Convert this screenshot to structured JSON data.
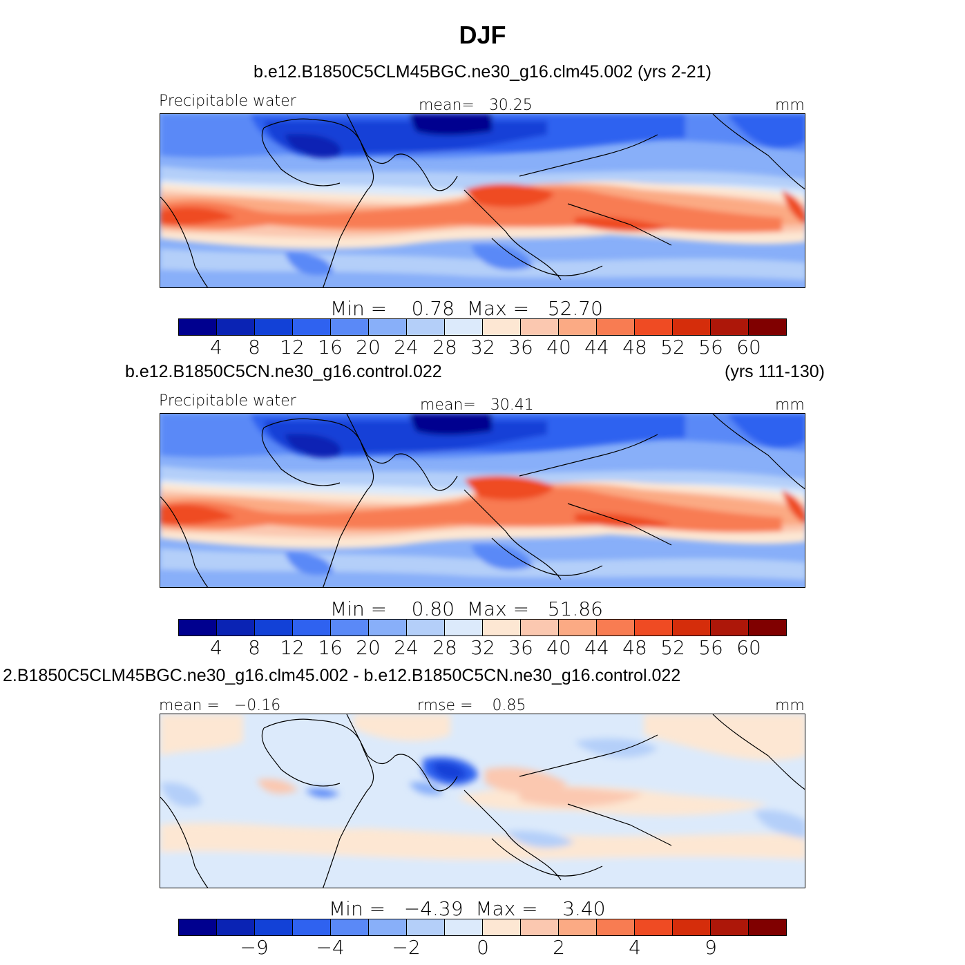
{
  "title": "DJF",
  "colors": [
    "#00008f",
    "#0a23b4",
    "#1241d7",
    "#2f62f0",
    "#5a89f7",
    "#88aff9",
    "#b4cff9",
    "#dceafb",
    "#fde7d3",
    "#fbc8b0",
    "#fbaa84",
    "#f87c52",
    "#ef4b23",
    "#d52d0b",
    "#ad1709",
    "#800000"
  ],
  "panels": [
    {
      "case": "b.e12.B1850C5CLM45BGC.ne30_g16.clm45.002 (yrs 2-21)",
      "case_years": "",
      "variable": "Precipitable  water",
      "mean_label": "mean=",
      "mean_value": "30.25",
      "units": "mm",
      "min_label": "Min  =",
      "min_value": "0.78",
      "max_label": "Max  =",
      "max_value": "52.70",
      "ticks": [
        "4",
        "8",
        "12",
        "16",
        "20",
        "24",
        "28",
        "32",
        "36",
        "40",
        "44",
        "48",
        "52",
        "56",
        "60"
      ]
    },
    {
      "case": "b.e12.B1850C5CN.ne30_g16.control.022",
      "case_years": "(yrs 111-130)",
      "variable": "Precipitable  water",
      "mean_label": "mean=",
      "mean_value": "30.41",
      "units": "mm",
      "min_label": "Min  =",
      "min_value": "0.80",
      "max_label": "Max  =",
      "max_value": "51.86",
      "ticks": [
        "4",
        "8",
        "12",
        "16",
        "20",
        "24",
        "28",
        "32",
        "36",
        "40",
        "44",
        "48",
        "52",
        "56",
        "60"
      ]
    },
    {
      "case": "2.B1850C5CLM45BGC.ne30_g16.clm45.002 - b.e12.B1850C5CN.ne30_g16.control.022",
      "mean_label": "mean  =",
      "mean_value": "−0.16",
      "rmse_label": "rmse  =",
      "rmse_value": "0.85",
      "units": "mm",
      "min_label": "Min  =",
      "min_value": "−4.39",
      "max_label": "Max  =",
      "max_value": "3.40",
      "ticks": [
        "−9",
        "−4",
        "−2",
        "0",
        "2",
        "4",
        "9"
      ]
    }
  ],
  "chart_data": [
    {
      "type": "heatmap",
      "title": "DJF",
      "subtitle": "b.e12.B1850C5CLM45BGC.ne30_g16.clm45.002 (yrs 2-21)",
      "variable": "Precipitable  water",
      "units": "mm",
      "mean": 30.25,
      "min": 0.78,
      "max": 52.7,
      "contour_levels": [
        4,
        8,
        12,
        16,
        20,
        24,
        28,
        32,
        36,
        40,
        44,
        48,
        52,
        56,
        60
      ],
      "map": "tropical band, Atlantic-centred, continents outlined",
      "features": [
        "Warm pool max over Maritime Continent / W Pacific (~48-52)",
        "Dry Sahara / Arabia (<8)",
        "ITCZ/SPCZ band 40-48"
      ]
    },
    {
      "type": "heatmap",
      "subtitle": "b.e12.B1850C5CN.ne30_g16.control.022 (yrs 111-130)",
      "variable": "Precipitable  water",
      "units": "mm",
      "mean": 30.41,
      "min": 0.8,
      "max": 51.86,
      "contour_levels": [
        4,
        8,
        12,
        16,
        20,
        24,
        28,
        32,
        36,
        40,
        44,
        48,
        52,
        56,
        60
      ]
    },
    {
      "type": "heatmap",
      "subtitle": "2.B1850C5CLM45BGC.ne30_g16.clm45.002 - b.e12.B1850C5CN.ne30_g16.control.022",
      "units": "mm",
      "mean": -0.16,
      "rmse": 0.85,
      "min": -4.39,
      "max": 3.4,
      "contour_levels": [
        -9,
        -4,
        -2,
        0,
        2,
        4,
        9
      ],
      "features": [
        "Negative anomaly over Bay of Bengal / Indochina (~-4)",
        "Positive anomaly over Maritime Continent / W Pacific (~+2)"
      ]
    }
  ]
}
